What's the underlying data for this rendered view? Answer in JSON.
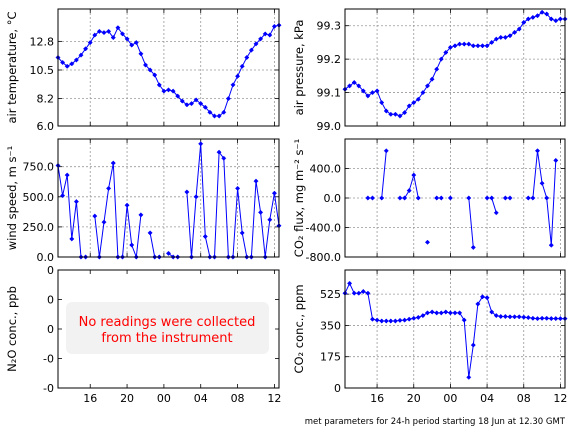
{
  "footer": "met parameters for 24-h period starting 18 Jun at 12.30 GMT",
  "no_data_message": [
    "No readings were collected",
    "from the instrument"
  ],
  "colors": {
    "series": "#0000ff",
    "message": "#ff0000",
    "message_box": "#f2f2f2",
    "grid": "#999999"
  },
  "time_ticks": [
    "16",
    "20",
    "00",
    "04",
    "08",
    "12"
  ],
  "chart_data": [
    {
      "type": "line",
      "ylabel": "air temperature, °C",
      "ylim": [
        6.0,
        15.4
      ],
      "yticks": [
        6.0,
        8.2,
        10.5,
        12.8
      ],
      "ytick_labels": [
        "6.0",
        "8.2",
        "10.5",
        "12.8"
      ],
      "grid": true,
      "x_hours": [
        12.5,
        13.0,
        13.5,
        14.0,
        14.5,
        15.0,
        15.5,
        16.0,
        16.5,
        17.0,
        17.5,
        18.0,
        18.5,
        19.0,
        19.5,
        20.0,
        20.5,
        21.0,
        21.5,
        22.0,
        22.5,
        23.0,
        23.5,
        24.0,
        24.5,
        25.0,
        25.5,
        26.0,
        26.5,
        27.0,
        27.5,
        28.0,
        28.5,
        29.0,
        29.5,
        30.0,
        30.5,
        31.0,
        31.5,
        32.0,
        32.5,
        33.0,
        33.5,
        34.0,
        34.5,
        35.0,
        35.5,
        36.0,
        36.5
      ],
      "values": [
        11.5,
        11.1,
        10.8,
        11.0,
        11.3,
        11.7,
        12.2,
        12.7,
        13.3,
        13.6,
        13.5,
        13.6,
        13.1,
        13.9,
        13.4,
        13.0,
        12.5,
        12.7,
        11.8,
        10.9,
        10.5,
        10.1,
        9.3,
        8.8,
        8.9,
        8.8,
        8.4,
        8.0,
        7.7,
        7.8,
        8.1,
        7.8,
        7.5,
        7.1,
        6.8,
        6.8,
        7.1,
        8.2,
        9.3,
        10.0,
        10.8,
        11.5,
        12.1,
        12.6,
        13.0,
        13.4,
        13.3,
        14.0,
        14.1
      ]
    },
    {
      "type": "line",
      "ylabel": "air pressure, kPa",
      "ylim": [
        99.0,
        99.35
      ],
      "yticks": [
        99.0,
        99.1,
        99.2,
        99.3
      ],
      "ytick_labels": [
        "99.0",
        "99.1",
        "99.2",
        "99.3"
      ],
      "grid": true,
      "x_hours": [
        12.5,
        13.0,
        13.5,
        14.0,
        14.5,
        15.0,
        15.5,
        16.0,
        16.5,
        17.0,
        17.5,
        18.0,
        18.5,
        19.0,
        19.5,
        20.0,
        20.5,
        21.0,
        21.5,
        22.0,
        22.5,
        23.0,
        23.5,
        24.0,
        24.5,
        25.0,
        25.5,
        26.0,
        26.5,
        27.0,
        27.5,
        28.0,
        28.5,
        29.0,
        29.5,
        30.0,
        30.5,
        31.0,
        31.5,
        32.0,
        32.5,
        33.0,
        33.5,
        34.0,
        34.5,
        35.0,
        35.5,
        36.0,
        36.5
      ],
      "values": [
        99.11,
        99.12,
        99.13,
        99.12,
        99.105,
        99.09,
        99.1,
        99.105,
        99.07,
        99.045,
        99.035,
        99.035,
        99.03,
        99.04,
        99.06,
        99.07,
        99.08,
        99.1,
        99.12,
        99.14,
        99.17,
        99.2,
        99.22,
        99.235,
        99.24,
        99.245,
        99.245,
        99.245,
        99.24,
        99.24,
        99.24,
        99.24,
        99.25,
        99.26,
        99.265,
        99.265,
        99.27,
        99.28,
        99.29,
        99.31,
        99.32,
        99.325,
        99.33,
        99.34,
        99.335,
        99.32,
        99.315,
        99.32,
        99.32
      ]
    },
    {
      "type": "line",
      "ylabel": "wind speed, m s⁻¹",
      "ylim": [
        0,
        980
      ],
      "yticks": [
        0,
        250,
        500,
        750
      ],
      "ytick_labels": [
        "0.0",
        "250.0",
        "500.0",
        "750.0"
      ],
      "grid": true,
      "x_hours": [
        12.5,
        13.0,
        13.5,
        14.0,
        14.5,
        15.0,
        15.5,
        16.0,
        16.5,
        17.0,
        17.5,
        18.0,
        18.5,
        19.0,
        19.5,
        20.0,
        20.5,
        21.0,
        21.5,
        22.0,
        22.5,
        23.0,
        23.5,
        24.0,
        24.5,
        25.0,
        25.5,
        26.0,
        26.5,
        27.0,
        27.5,
        28.0,
        28.5,
        29.0,
        29.5,
        30.0,
        30.5,
        31.0,
        31.5,
        32.0,
        32.5,
        33.0,
        33.5,
        34.0,
        34.5,
        35.0,
        35.5,
        36.0,
        36.5
      ],
      "values": [
        760,
        510,
        680,
        150,
        460,
        0,
        0,
        null,
        340,
        0,
        290,
        570,
        780,
        0,
        0,
        430,
        100,
        0,
        350,
        null,
        200,
        0,
        0,
        null,
        30,
        0,
        0,
        null,
        540,
        0,
        500,
        940,
        170,
        0,
        0,
        870,
        820,
        0,
        0,
        570,
        200,
        0,
        0,
        630,
        370,
        0,
        310,
        530,
        260
      ]
    },
    {
      "type": "line",
      "ylabel": "CO₂ flux, mg m⁻² s⁻¹",
      "ylim": [
        -800,
        800
      ],
      "yticks": [
        -800,
        -400,
        0,
        400
      ],
      "ytick_labels": [
        "-800.0",
        "-400.0",
        "0.0",
        "400.0"
      ],
      "grid": true,
      "x_hours": [
        12.5,
        13.0,
        13.5,
        14.0,
        14.5,
        15.0,
        15.5,
        16.0,
        16.5,
        17.0,
        17.5,
        18.0,
        18.5,
        19.0,
        19.5,
        20.0,
        20.5,
        21.0,
        21.5,
        22.0,
        22.5,
        23.0,
        23.5,
        24.0,
        24.5,
        25.0,
        25.5,
        26.0,
        26.5,
        27.0,
        27.5,
        28.0,
        28.5,
        29.0,
        29.5,
        30.0,
        30.5,
        31.0,
        31.5,
        32.0,
        32.5,
        33.0,
        33.5,
        34.0,
        34.5,
        35.0,
        35.5,
        36.0,
        36.5
      ],
      "values": [
        null,
        null,
        null,
        null,
        null,
        0,
        0,
        null,
        0,
        640,
        null,
        null,
        0,
        0,
        100,
        310,
        0,
        null,
        -600,
        null,
        0,
        0,
        null,
        0,
        null,
        null,
        null,
        0,
        -670,
        null,
        null,
        0,
        0,
        -200,
        null,
        0,
        0,
        null,
        null,
        null,
        0,
        0,
        640,
        200,
        0,
        -640,
        510,
        null,
        null
      ]
    },
    {
      "type": "line",
      "ylabel": "N₂O conc., ppb",
      "ylim": [
        -1,
        1
      ],
      "yticks": [
        -1,
        -0.5,
        0,
        0.5,
        1
      ],
      "ytick_labels": [
        "-0",
        "-0",
        "0",
        "0",
        "0"
      ],
      "grid": false,
      "x_hours": [],
      "values": []
    },
    {
      "type": "line",
      "ylabel": "CO₂ conc., ppm",
      "ylim": [
        0,
        660
      ],
      "yticks": [
        0,
        175,
        350,
        525
      ],
      "ytick_labels": [
        "0",
        "175",
        "350",
        "525"
      ],
      "grid": true,
      "x_hours": [
        12.5,
        13.0,
        13.5,
        14.0,
        14.5,
        15.0,
        15.5,
        16.0,
        16.5,
        17.0,
        17.5,
        18.0,
        18.5,
        19.0,
        19.5,
        20.0,
        20.5,
        21.0,
        21.5,
        22.0,
        22.5,
        23.0,
        23.5,
        24.0,
        24.5,
        25.0,
        25.5,
        26.0,
        26.5,
        27.0,
        27.5,
        28.0,
        28.5,
        29.0,
        29.5,
        30.0,
        30.5,
        31.0,
        31.5,
        32.0,
        32.5,
        33.0,
        33.5,
        34.0,
        34.5,
        35.0,
        35.5,
        36.0,
        36.5
      ],
      "values": [
        530,
        585,
        530,
        530,
        540,
        530,
        385,
        380,
        375,
        375,
        375,
        375,
        378,
        380,
        385,
        390,
        395,
        405,
        420,
        425,
        420,
        420,
        425,
        420,
        420,
        420,
        380,
        60,
        240,
        470,
        510,
        505,
        425,
        405,
        400,
        400,
        398,
        398,
        398,
        396,
        394,
        390,
        388,
        390,
        390,
        388,
        388,
        388,
        388
      ]
    }
  ]
}
